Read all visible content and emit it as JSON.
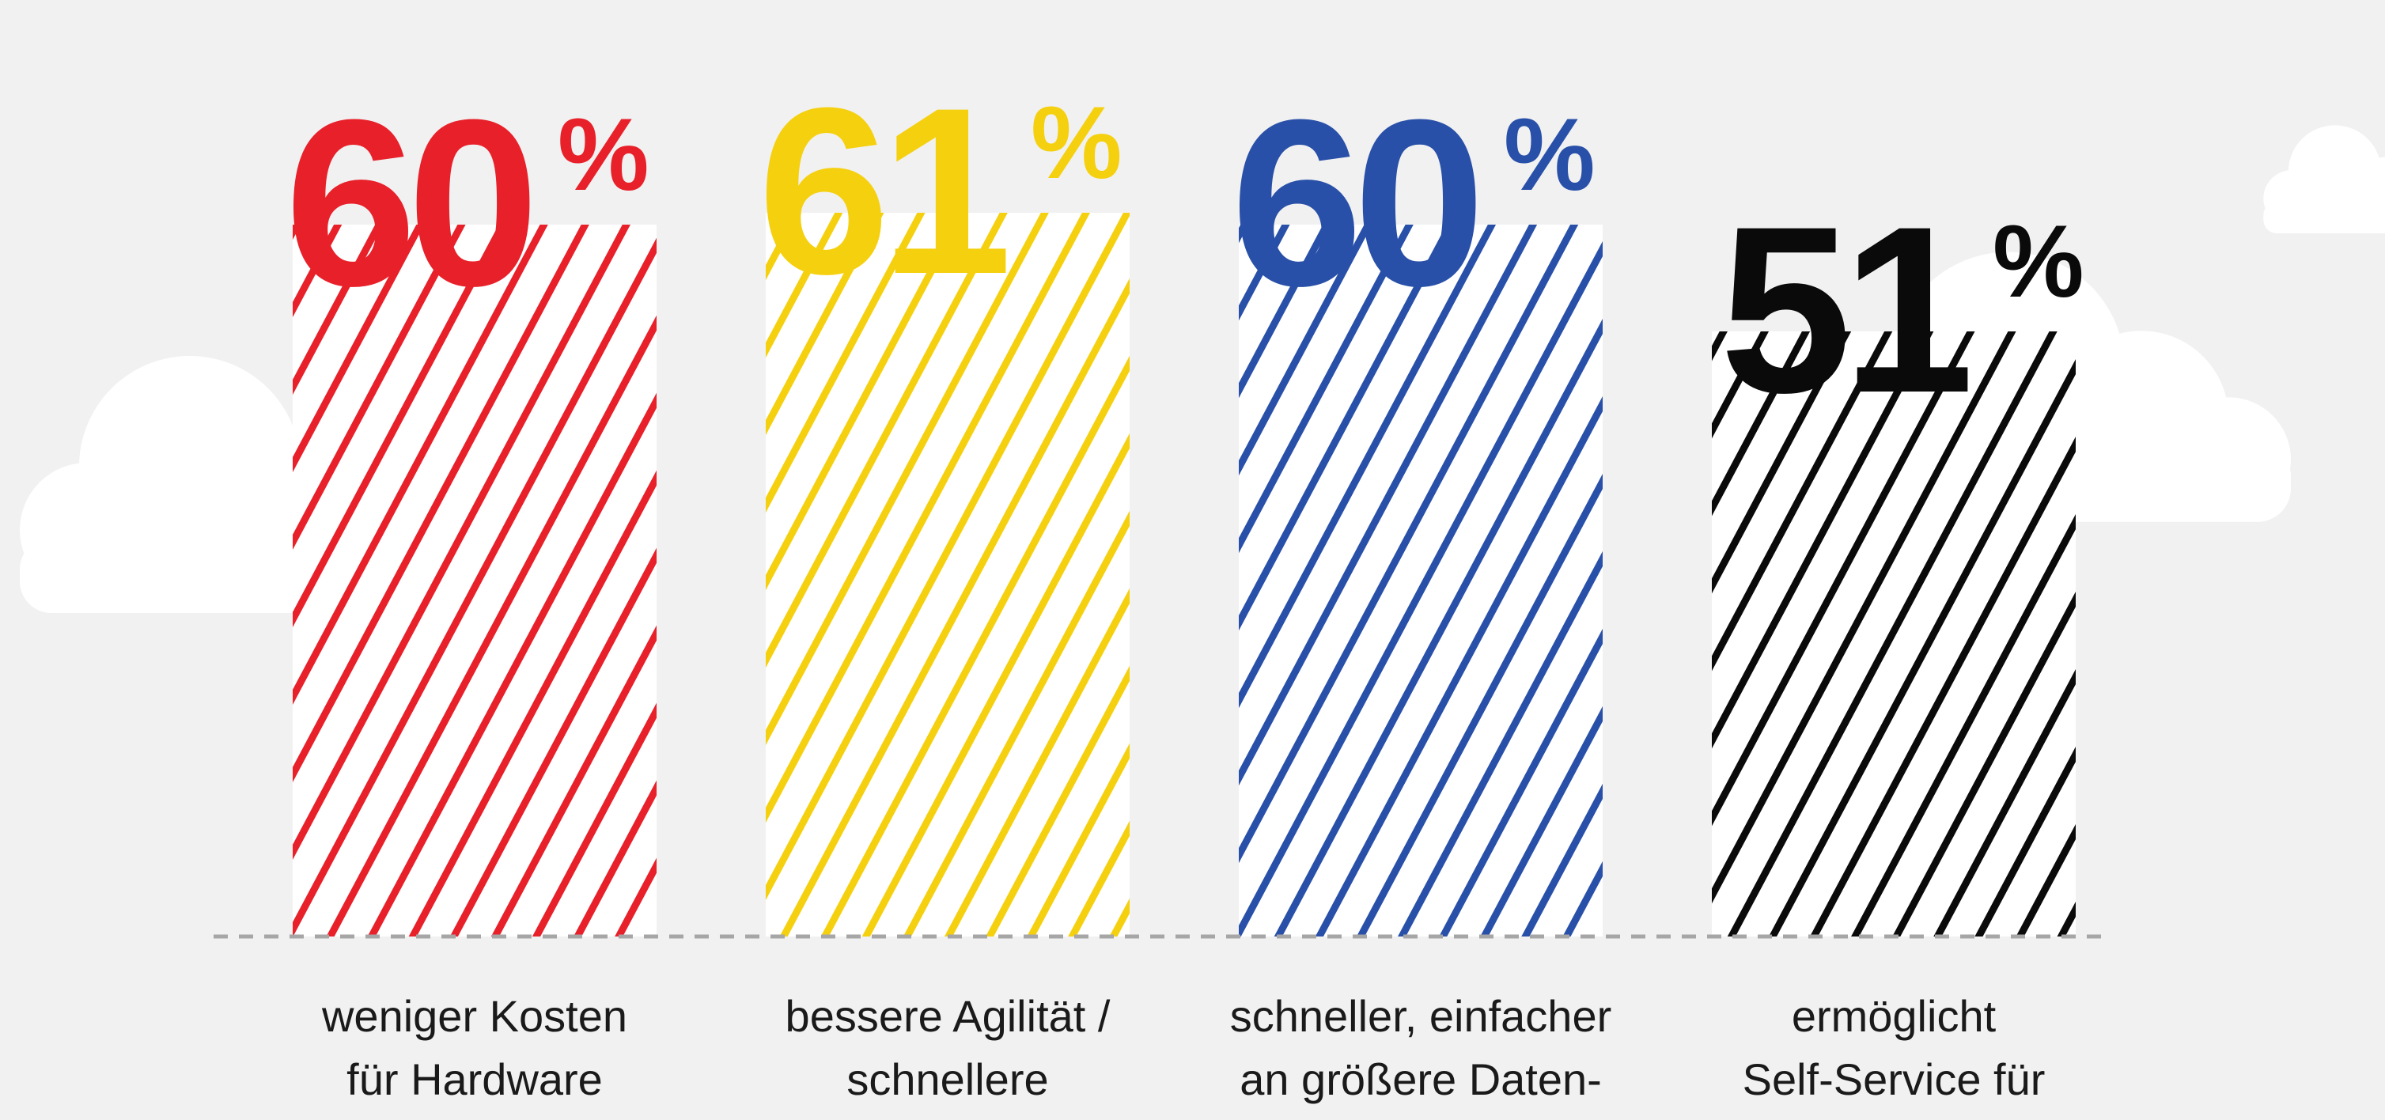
{
  "chart_data": {
    "type": "bar",
    "title": "",
    "xlabel": "",
    "ylabel": "",
    "ylim": [
      0,
      100
    ],
    "grid": false,
    "legend": "none",
    "value_suffix": "%",
    "categories": [
      "weniger Kosten für Hardware",
      "bessere Agilität / schnellere",
      "schneller, einfacher an größere Daten-",
      "ermöglicht Self-Service für"
    ],
    "label_lines": [
      [
        "weniger Kosten",
        "für Hardware"
      ],
      [
        "bessere Agilität /",
        "schnellere"
      ],
      [
        "schneller, einfacher",
        "an größere Daten-"
      ],
      [
        "ermöglicht",
        "Self-Service für"
      ]
    ],
    "values": [
      60,
      61,
      60,
      51
    ],
    "colors": [
      "#e8202a",
      "#f5d00f",
      "#2950a8",
      "#0a0a0a"
    ]
  },
  "decor": {
    "background": "#f1f1f1",
    "cloud_color": "#ffffff",
    "baseline_color": "#a6a6a6",
    "icons": [
      "cloud-icon",
      "cloud-icon",
      "cloud-icon"
    ]
  }
}
